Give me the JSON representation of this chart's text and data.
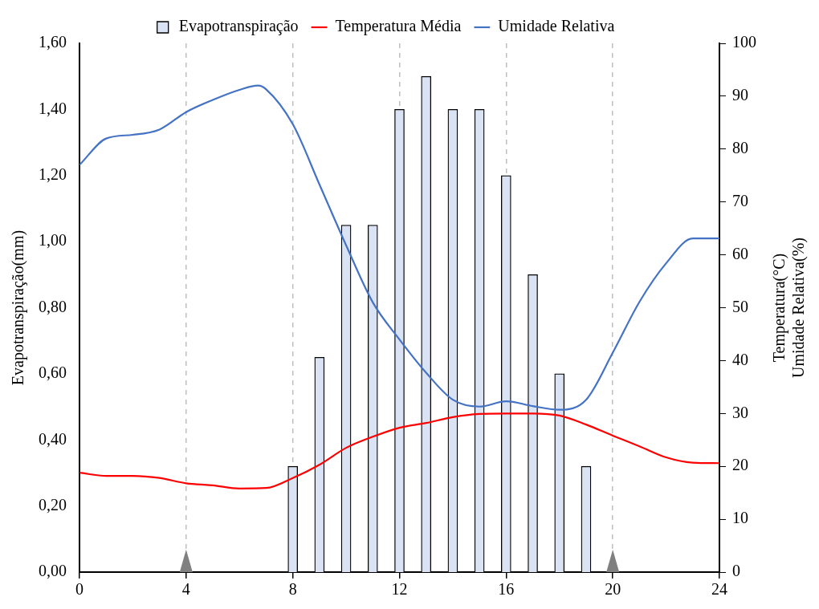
{
  "chart_data": {
    "type": "bar",
    "xlabel": null,
    "ylabel": "Evapotranspiração(mm)",
    "y2label": "Temperatura(°C)\nUmidade Relativa(%)",
    "xlim": [
      0,
      24
    ],
    "xticks": [
      0,
      4,
      8,
      12,
      16,
      20,
      24
    ],
    "ylim": [
      0,
      1.6
    ],
    "yticks": [
      {
        "value": 0,
        "label": "0,00"
      },
      {
        "value": 0.2,
        "label": "0,20"
      },
      {
        "value": 0.4,
        "label": "0,40"
      },
      {
        "value": 0.6,
        "label": "0,60"
      },
      {
        "value": 0.8,
        "label": "0,80"
      },
      {
        "value": 1,
        "label": "1,00"
      },
      {
        "value": 1.2,
        "label": "1,20"
      },
      {
        "value": 1.4,
        "label": "1,40"
      },
      {
        "value": 1.6,
        "label": "1,60"
      }
    ],
    "y2lim": [
      0,
      100
    ],
    "y2ticks": [
      0,
      10,
      20,
      30,
      40,
      50,
      60,
      70,
      80,
      90,
      100
    ],
    "grid": "x",
    "legend": "top",
    "line_style": "solid",
    "marker": "none",
    "series": [
      {
        "name": "Evapotranspiração",
        "color": "#dae3f3",
        "x": [
          8,
          9,
          10,
          11,
          12,
          13,
          14,
          15,
          16,
          17,
          18,
          19
        ],
        "values": [
          0.32,
          0.65,
          1.05,
          1.05,
          1.4,
          1.5,
          1.4,
          1.4,
          1.2,
          0.9,
          0.6,
          0.32
        ]
      },
      {
        "name": "Temperatura Média",
        "type": "line",
        "axis": "y2",
        "color": "#ff0000",
        "x": [
          0,
          1,
          2,
          3,
          4,
          5,
          6,
          7,
          8,
          9,
          10,
          11,
          12,
          13,
          14,
          15,
          16,
          17,
          18,
          19,
          20,
          21,
          22,
          23,
          24
        ],
        "values": [
          18.8,
          18.2,
          18.2,
          17.8,
          16.8,
          16.4,
          15.8,
          15.9,
          17.8,
          20.3,
          23.5,
          25.6,
          27.3,
          28.2,
          29.3,
          29.9,
          30,
          30,
          29.6,
          27.9,
          25.8,
          23.8,
          21.7,
          20.7,
          20.6
        ]
      },
      {
        "name": "Umidade Relativa",
        "type": "line",
        "axis": "y2",
        "color": "#4472c4",
        "x": [
          0,
          1,
          2,
          3,
          4,
          5,
          6,
          6.7,
          7,
          8,
          9,
          10,
          11,
          12,
          13,
          14,
          15,
          16,
          17,
          18,
          19,
          20,
          21,
          22,
          23,
          24
        ],
        "values": [
          77,
          82,
          82.7,
          83.7,
          87,
          89.3,
          91.2,
          92,
          91.3,
          84.7,
          73.3,
          61.8,
          51,
          44,
          37.7,
          32.6,
          31.3,
          32.3,
          31.4,
          30.7,
          32.6,
          41.5,
          51.1,
          58.4,
          63.1,
          63.1
        ]
      }
    ]
  }
}
